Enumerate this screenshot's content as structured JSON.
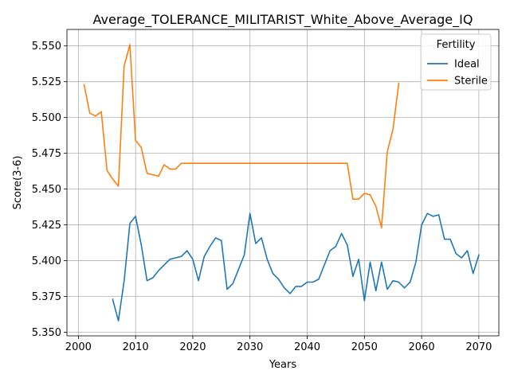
{
  "chart_data": {
    "type": "line",
    "title": "Average_TOLERANCE_MILITARIST_White_Above_Average_IQ",
    "xlabel": "Years",
    "ylabel": "Score(3-6)",
    "xlim": [
      1998,
      2073.5
    ],
    "ylim": [
      5.3475,
      5.5615
    ],
    "xticks": [
      2000,
      2010,
      2020,
      2030,
      2040,
      2050,
      2060,
      2070
    ],
    "yticks": [
      5.35,
      5.375,
      5.4,
      5.425,
      5.45,
      5.475,
      5.5,
      5.525,
      5.55
    ],
    "ytick_labels": [
      "5.350",
      "5.375",
      "5.400",
      "5.425",
      "5.450",
      "5.475",
      "5.500",
      "5.525",
      "5.550"
    ],
    "grid": true,
    "legend": {
      "title": "Fertility",
      "position": "top-right"
    },
    "series": [
      {
        "name": "Ideal",
        "color": "#1f77b4",
        "x": [
          2006,
          2007,
          2008,
          2009,
          2010,
          2011,
          2012,
          2013,
          2014,
          2015,
          2016,
          2017,
          2018,
          2019,
          2020,
          2021,
          2022,
          2023,
          2024,
          2025,
          2026,
          2027,
          2028,
          2029,
          2030,
          2031,
          2032,
          2033,
          2034,
          2035,
          2036,
          2037,
          2038,
          2039,
          2040,
          2041,
          2042,
          2043,
          2044,
          2045,
          2046,
          2047,
          2048,
          2049,
          2050,
          2051,
          2052,
          2053,
          2054,
          2055,
          2056,
          2057,
          2058,
          2059,
          2060,
          2061,
          2062,
          2063,
          2064,
          2065,
          2066,
          2067,
          2068,
          2069,
          2070
        ],
        "y": [
          5.373,
          5.358,
          5.386,
          5.426,
          5.431,
          5.411,
          5.386,
          5.388,
          5.393,
          5.397,
          5.401,
          5.402,
          5.403,
          5.407,
          5.401,
          5.386,
          5.403,
          5.41,
          5.416,
          5.414,
          5.38,
          5.384,
          5.394,
          5.404,
          5.433,
          5.412,
          5.416,
          5.401,
          5.391,
          5.387,
          5.381,
          5.377,
          5.382,
          5.382,
          5.385,
          5.385,
          5.387,
          5.397,
          5.407,
          5.41,
          5.419,
          5.411,
          5.389,
          5.401,
          5.372,
          5.399,
          5.379,
          5.399,
          5.38,
          5.386,
          5.385,
          5.381,
          5.385,
          5.399,
          5.425,
          5.433,
          5.431,
          5.432,
          5.415,
          5.415,
          5.405,
          5.402,
          5.407,
          5.391,
          5.404
        ]
      },
      {
        "name": "Sterile",
        "color": "#ff7f0e",
        "x": [
          2001,
          2002,
          2003,
          2004,
          2005,
          2006,
          2007,
          2008,
          2009,
          2010,
          2011,
          2012,
          2013,
          2014,
          2015,
          2016,
          2017,
          2018,
          2019,
          2020,
          2021,
          2022,
          2023,
          2024,
          2025,
          2026,
          2027,
          2028,
          2029,
          2030,
          2031,
          2032,
          2033,
          2034,
          2035,
          2036,
          2037,
          2038,
          2039,
          2040,
          2041,
          2042,
          2043,
          2044,
          2045,
          2046,
          2047,
          2048,
          2049,
          2050,
          2051,
          2052,
          2053,
          2054,
          2055,
          2056
        ],
        "y": [
          5.523,
          5.503,
          5.501,
          5.504,
          5.463,
          5.457,
          5.452,
          5.536,
          5.551,
          5.484,
          5.479,
          5.461,
          5.46,
          5.459,
          5.467,
          5.464,
          5.464,
          5.468,
          5.468,
          5.468,
          5.468,
          5.468,
          5.468,
          5.468,
          5.468,
          5.468,
          5.468,
          5.468,
          5.468,
          5.468,
          5.468,
          5.468,
          5.468,
          5.468,
          5.468,
          5.468,
          5.468,
          5.468,
          5.468,
          5.468,
          5.468,
          5.468,
          5.468,
          5.468,
          5.468,
          5.468,
          5.468,
          5.443,
          5.443,
          5.447,
          5.446,
          5.438,
          5.423,
          5.476,
          5.492,
          5.524
        ]
      }
    ]
  }
}
